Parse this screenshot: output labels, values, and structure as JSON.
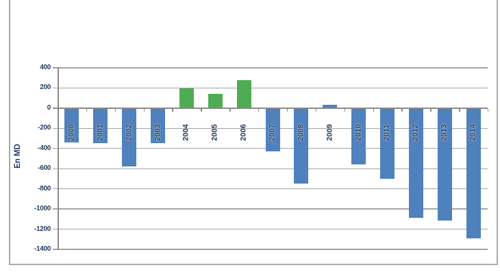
{
  "chart_data": {
    "type": "bar",
    "title": "",
    "xlabel": "",
    "ylabel": "En MD",
    "categories": [
      "2000",
      "2001",
      "2002",
      "2003",
      "2004",
      "2005",
      "2006",
      "2007",
      "2008",
      "2009",
      "2010",
      "2011",
      "2012",
      "2013",
      "2014"
    ],
    "values": [
      -340,
      -345,
      -580,
      -350,
      195,
      145,
      280,
      -430,
      -750,
      35,
      -555,
      -700,
      -1090,
      -1115,
      -1290
    ],
    "bar_colors": [
      "blue",
      "blue",
      "blue",
      "blue",
      "green",
      "green",
      "green",
      "blue",
      "blue",
      "blue",
      "blue",
      "blue",
      "blue",
      "blue",
      "blue"
    ],
    "palette": {
      "blue": "#4f81bd",
      "green": "#4ead52"
    },
    "yticks": [
      400,
      200,
      0,
      -200,
      -400,
      -600,
      -800,
      -1000,
      -1200,
      -1400
    ],
    "ylim": [
      -1400,
      400
    ],
    "grid": true,
    "legend": "none",
    "text_color": "#1e3a5f",
    "grid_color": "#a3a3a3",
    "axis_color": "#8a8a8a",
    "frame_border_color": "#a9a9a9",
    "background": "#ffffff"
  }
}
